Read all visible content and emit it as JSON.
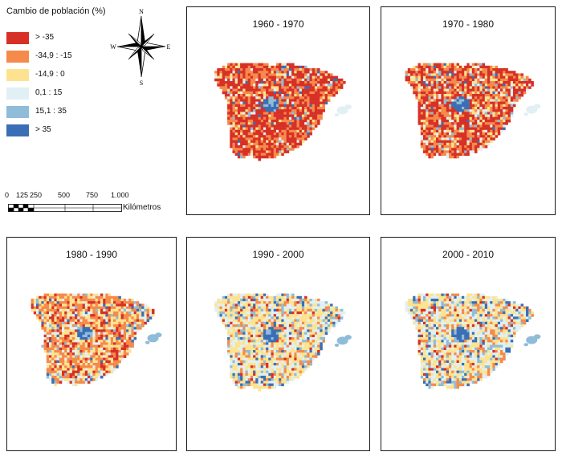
{
  "legend": {
    "title": "Cambio de población (%)",
    "items": [
      {
        "label": "> -35",
        "color": "#d73027"
      },
      {
        "label": "-34,9 : -15",
        "color": "#f68a4b"
      },
      {
        "label": "-14,9 : 0",
        "color": "#fde38f"
      },
      {
        "label": "0,1 : 15",
        "color": "#e0f0f4"
      },
      {
        "label": "15,1 : 35",
        "color": "#8fbcd9"
      },
      {
        "label": "> 35",
        "color": "#3a6fb5"
      }
    ]
  },
  "compass": {
    "n": "N",
    "s": "S",
    "e": "E",
    "w": "W"
  },
  "scale": {
    "ticks": [
      "0",
      "125",
      "250",
      "500",
      "750",
      "1.000"
    ],
    "unit": "Kilómetros"
  },
  "panels": [
    {
      "title": "1960 - 1970",
      "mix": [
        0.5,
        0.3,
        0.1,
        0.05,
        0.03,
        0.02
      ]
    },
    {
      "title": "1970 - 1980",
      "mix": [
        0.45,
        0.28,
        0.13,
        0.08,
        0.04,
        0.02
      ]
    },
    {
      "title": "1980 - 1990",
      "mix": [
        0.18,
        0.38,
        0.26,
        0.12,
        0.04,
        0.02
      ]
    },
    {
      "title": "1990 - 2000",
      "mix": [
        0.04,
        0.14,
        0.4,
        0.28,
        0.1,
        0.04
      ]
    },
    {
      "title": "2000 - 2010",
      "mix": [
        0.05,
        0.16,
        0.34,
        0.28,
        0.11,
        0.06
      ]
    }
  ]
}
